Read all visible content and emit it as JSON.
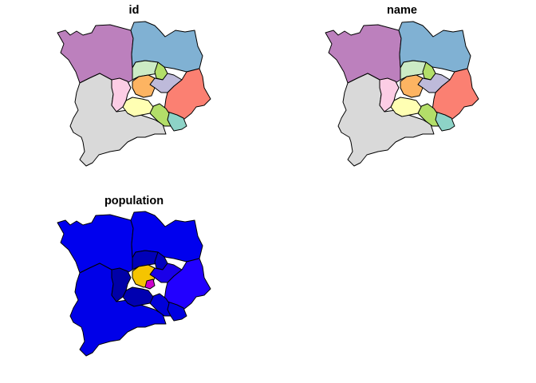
{
  "panels": [
    {
      "title": "id",
      "regions": [
        {
          "id": "northwest",
          "fill": "#BC80BD"
        },
        {
          "id": "northeast",
          "fill": "#80B1D3"
        },
        {
          "id": "southwest",
          "fill": "#D9D9D9"
        },
        {
          "id": "east",
          "fill": "#FB8072"
        },
        {
          "id": "southeast-small",
          "fill": "#8DD3C7"
        },
        {
          "id": "southeast-mid",
          "fill": "#B3DE69"
        },
        {
          "id": "center-south",
          "fill": "#FFFFB3"
        },
        {
          "id": "center-west",
          "fill": "#FCCDE5"
        },
        {
          "id": "center-north",
          "fill": "#CCEBC5"
        },
        {
          "id": "center-northeast",
          "fill": "#B3DE69"
        },
        {
          "id": "center-east",
          "fill": "#BEBADA"
        },
        {
          "id": "center-core",
          "fill": "#FDB462"
        }
      ]
    },
    {
      "title": "name",
      "regions": [
        {
          "id": "northwest",
          "fill": "#BC80BD"
        },
        {
          "id": "northeast",
          "fill": "#80B1D3"
        },
        {
          "id": "southwest",
          "fill": "#D9D9D9"
        },
        {
          "id": "east",
          "fill": "#FB8072"
        },
        {
          "id": "southeast-small",
          "fill": "#8DD3C7"
        },
        {
          "id": "southeast-mid",
          "fill": "#B3DE69"
        },
        {
          "id": "center-south",
          "fill": "#FFFFB3"
        },
        {
          "id": "center-west",
          "fill": "#FCCDE5"
        },
        {
          "id": "center-north",
          "fill": "#CCEBC5"
        },
        {
          "id": "center-northeast",
          "fill": "#B3DE69"
        },
        {
          "id": "center-east",
          "fill": "#BEBADA"
        },
        {
          "id": "center-core",
          "fill": "#FDB462"
        }
      ]
    },
    {
      "title": "population",
      "regions": [
        {
          "id": "northwest",
          "fill": "#0000EE"
        },
        {
          "id": "northeast",
          "fill": "#0000EE"
        },
        {
          "id": "southwest",
          "fill": "#0000E8"
        },
        {
          "id": "east",
          "fill": "#2200FF"
        },
        {
          "id": "southeast-small",
          "fill": "#0000E0"
        },
        {
          "id": "southeast-mid",
          "fill": "#0000D8"
        },
        {
          "id": "center-south",
          "fill": "#0000B0"
        },
        {
          "id": "center-west",
          "fill": "#0000A8"
        },
        {
          "id": "center-north",
          "fill": "#0000B8"
        },
        {
          "id": "center-northeast",
          "fill": "#0000C0"
        },
        {
          "id": "center-east",
          "fill": "#1A00E8"
        },
        {
          "id": "center-core",
          "fill": "#F5C400"
        },
        {
          "id": "center-hot",
          "fill": "#CC00CC"
        }
      ]
    }
  ]
}
